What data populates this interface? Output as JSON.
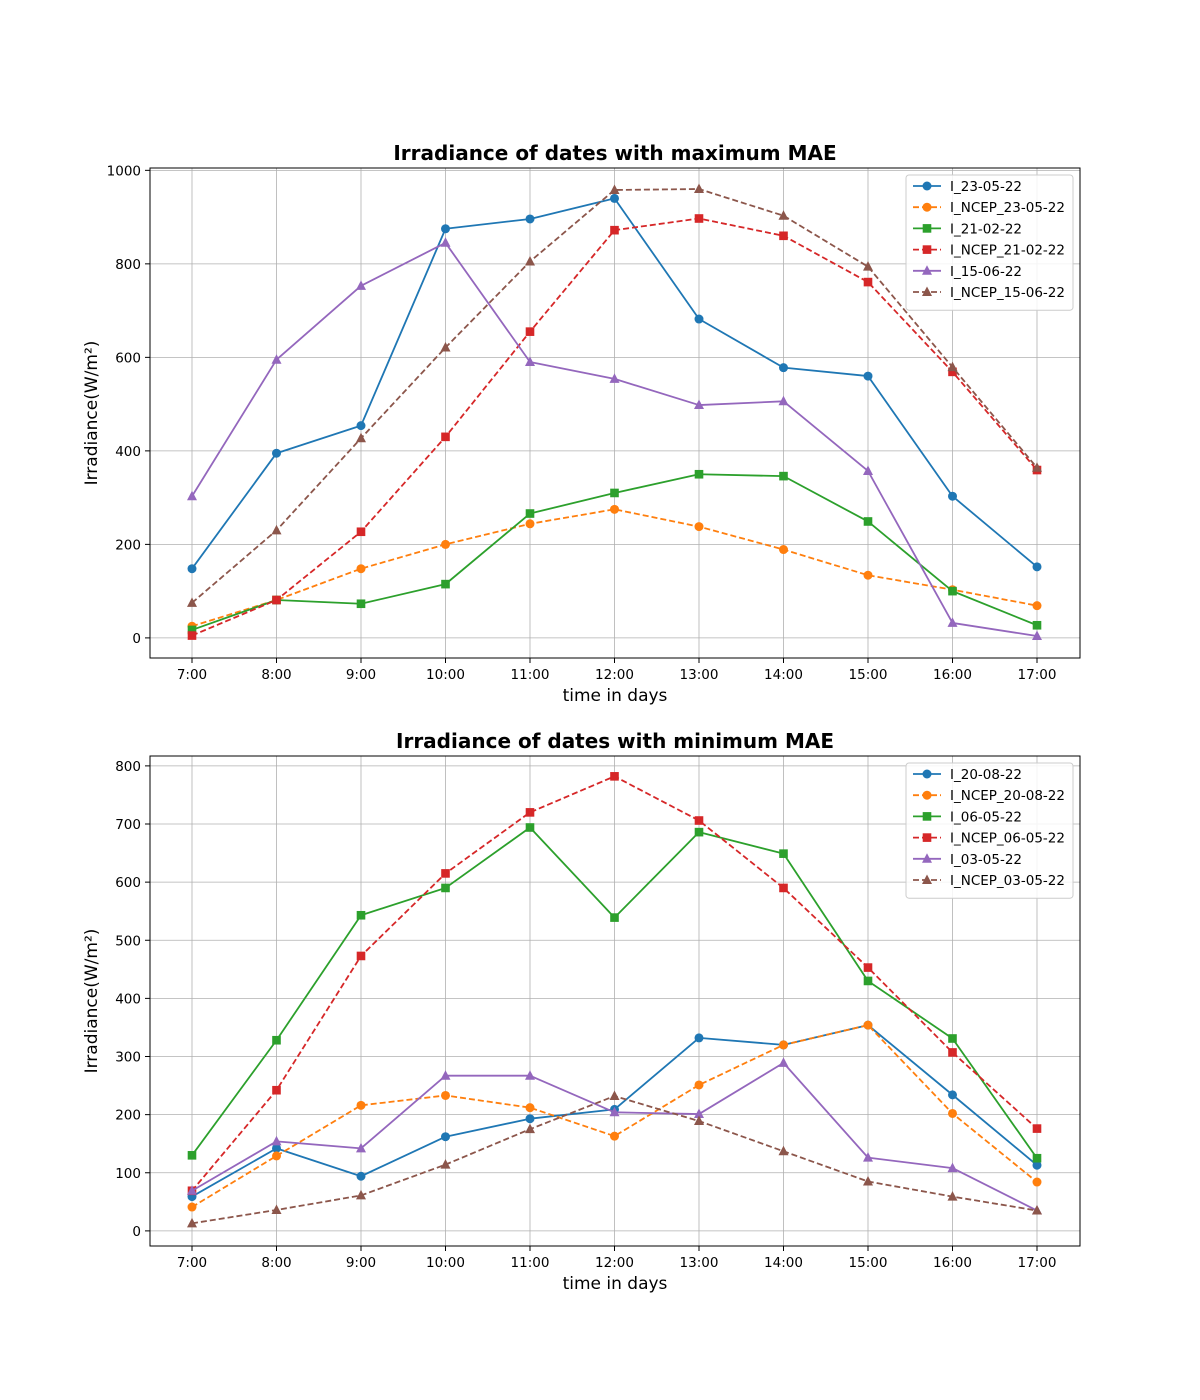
{
  "chart_data": [
    {
      "type": "line",
      "title": "Irradiance of dates with maximum MAE",
      "xlabel": "time in days",
      "ylabel": "Irradiance(W/m²)",
      "categories": [
        "7:00",
        "8:00",
        "9:00",
        "10:00",
        "11:00",
        "12:00",
        "13:00",
        "14:00",
        "15:00",
        "16:00",
        "17:00"
      ],
      "ylim": [
        -43,
        1005
      ],
      "yticks": [
        0,
        200,
        400,
        600,
        800,
        1000
      ],
      "grid": true,
      "legend_position": "top-right",
      "series": [
        {
          "name": "I_23-05-22",
          "color": "#1f77b4",
          "marker": "circle",
          "dashed": false,
          "values": [
            148,
            395,
            454,
            875,
            896,
            940,
            682,
            578,
            560,
            303,
            152
          ]
        },
        {
          "name": "I_NCEP_23-05-22",
          "color": "#ff7f0e",
          "marker": "circle",
          "dashed": true,
          "values": [
            25,
            81,
            148,
            200,
            244,
            275,
            238,
            189,
            134,
            103,
            69
          ]
        },
        {
          "name": "I_21-02-22",
          "color": "#2ca02c",
          "marker": "square",
          "dashed": false,
          "values": [
            17,
            81,
            73,
            115,
            266,
            310,
            350,
            346,
            249,
            100,
            27
          ]
        },
        {
          "name": "I_NCEP_21-02-22",
          "color": "#d62728",
          "marker": "square",
          "dashed": true,
          "values": [
            5,
            81,
            227,
            430,
            655,
            872,
            897,
            860,
            761,
            569,
            359
          ]
        },
        {
          "name": "I_15-06-22",
          "color": "#9467bd",
          "marker": "triangle",
          "dashed": false,
          "values": [
            303,
            595,
            753,
            845,
            590,
            554,
            498,
            506,
            357,
            32,
            4
          ]
        },
        {
          "name": "I_NCEP_15-06-22",
          "color": "#8c564b",
          "marker": "triangle",
          "dashed": true,
          "values": [
            75,
            230,
            427,
            621,
            805,
            958,
            960,
            903,
            794,
            579,
            364
          ]
        }
      ]
    },
    {
      "type": "line",
      "title": "Irradiance of dates with minimum MAE",
      "xlabel": "time in days",
      "ylabel": "Irradiance(W/m²)",
      "categories": [
        "7:00",
        "8:00",
        "9:00",
        "10:00",
        "11:00",
        "12:00",
        "13:00",
        "14:00",
        "15:00",
        "16:00",
        "17:00"
      ],
      "ylim": [
        -26,
        817
      ],
      "yticks": [
        0,
        100,
        200,
        300,
        400,
        500,
        600,
        700,
        800
      ],
      "grid": true,
      "legend_position": "top-right",
      "series": [
        {
          "name": "I_20-08-22",
          "color": "#1f77b4",
          "marker": "circle",
          "dashed": false,
          "values": [
            59,
            142,
            94,
            162,
            193,
            209,
            332,
            320,
            354,
            234,
            113
          ]
        },
        {
          "name": "I_NCEP_20-08-22",
          "color": "#ff7f0e",
          "marker": "circle",
          "dashed": true,
          "values": [
            41,
            129,
            216,
            233,
            212,
            163,
            251,
            320,
            354,
            202,
            84
          ]
        },
        {
          "name": "I_06-05-22",
          "color": "#2ca02c",
          "marker": "square",
          "dashed": false,
          "values": [
            130,
            328,
            543,
            590,
            694,
            539,
            686,
            649,
            430,
            331,
            125
          ]
        },
        {
          "name": "I_NCEP_06-05-22",
          "color": "#d62728",
          "marker": "square",
          "dashed": true,
          "values": [
            69,
            242,
            473,
            615,
            720,
            782,
            706,
            590,
            453,
            307,
            176
          ]
        },
        {
          "name": "I_03-05-22",
          "color": "#9467bd",
          "marker": "triangle",
          "dashed": false,
          "values": [
            69,
            154,
            142,
            267,
            267,
            204,
            201,
            289,
            126,
            108,
            35
          ]
        },
        {
          "name": "I_NCEP_03-05-22",
          "color": "#8c564b",
          "marker": "triangle",
          "dashed": true,
          "values": [
            13,
            36,
            61,
            114,
            175,
            232,
            189,
            137,
            85,
            59,
            35
          ]
        }
      ]
    }
  ]
}
